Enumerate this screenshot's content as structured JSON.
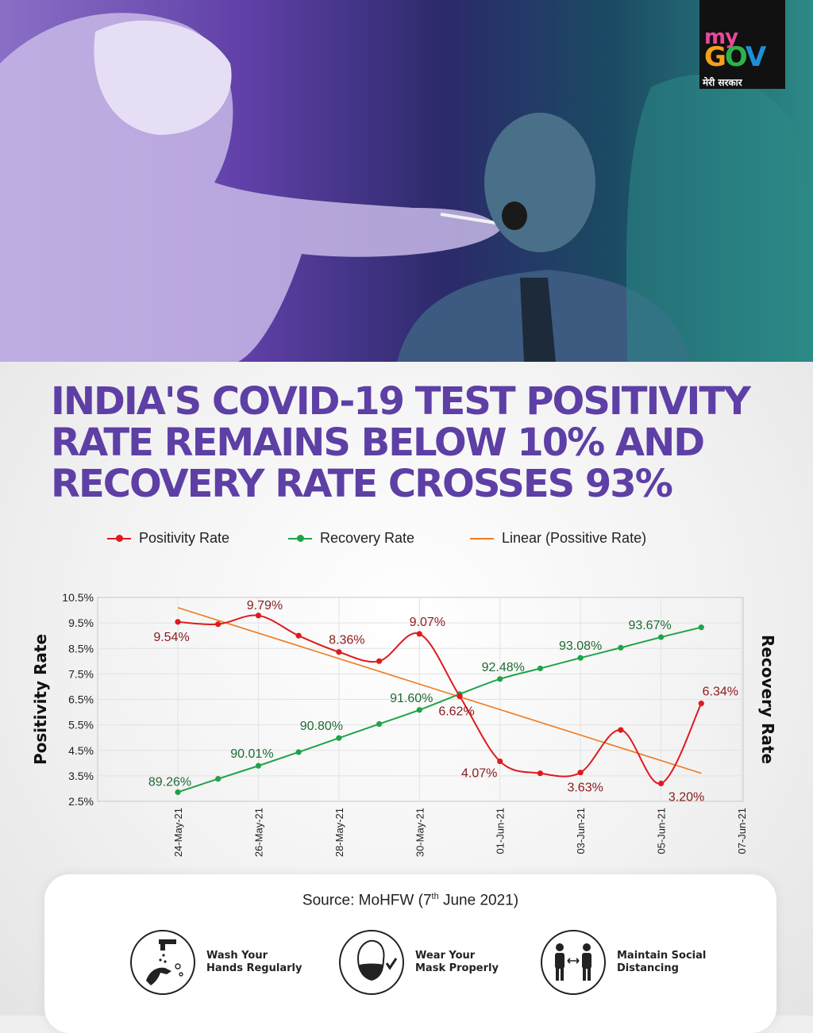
{
  "logo": {
    "my": "my",
    "gov_g": "G",
    "gov_o": "O",
    "gov_v": "V",
    "hindi": "मेरी सरकार"
  },
  "headline": {
    "line1": "INDIA'S COVID-19 TEST POSITIVITY",
    "line2": "RATE REMAINS BELOW 10% AND",
    "line3": "RECOVERY RATE CROSSES 93%"
  },
  "colors": {
    "positivity": "#e0191f",
    "recovery": "#1fa34a",
    "trend": "#f07a1e",
    "headline": "#5d3fa5"
  },
  "chart_data": {
    "type": "line",
    "legend": [
      "Positivity Rate",
      "Recovery Rate",
      "Linear (Possitive Rate)"
    ],
    "ylabel_left": "Positivity Rate",
    "ylabel_right": "Recovery Rate",
    "yticks": [
      "10.5%",
      "9.5%",
      "8.5%",
      "7.5%",
      "6.5%",
      "5.5%",
      "4.5%",
      "3.5%",
      "2.5%"
    ],
    "ylim": [
      2.5,
      10.5
    ],
    "xticks": [
      "24-May-21",
      "26-May-21",
      "28-May-21",
      "30-May-21",
      "01-Jun-21",
      "03-Jun-21",
      "05-Jun-21",
      "07-Jun-21"
    ],
    "x_range_days": [
      0,
      14
    ],
    "positivity": {
      "name": "Positivity Rate",
      "x": [
        0,
        1,
        2,
        3,
        4,
        5,
        6,
        7,
        8,
        9,
        10,
        11,
        12,
        13
      ],
      "values": [
        9.54,
        9.45,
        9.79,
        9.0,
        8.36,
        8.0,
        9.07,
        6.62,
        4.07,
        3.6,
        3.63,
        5.3,
        3.2,
        6.34
      ],
      "labels": [
        {
          "i": 0,
          "text": "9.54%"
        },
        {
          "i": 2,
          "text": "9.79%"
        },
        {
          "i": 4,
          "text": "8.36%"
        },
        {
          "i": 6,
          "text": "9.07%"
        },
        {
          "i": 7,
          "text": "6.62%"
        },
        {
          "i": 8,
          "text": "4.07%"
        },
        {
          "i": 10,
          "text": "3.63%"
        },
        {
          "i": 12,
          "text": "3.20%"
        },
        {
          "i": 13,
          "text": "6.34%"
        }
      ]
    },
    "recovery": {
      "name": "Recovery Rate",
      "x": [
        0,
        1,
        2,
        3,
        4,
        5,
        6,
        7,
        8,
        9,
        10,
        11,
        12,
        13
      ],
      "values": [
        89.26,
        89.64,
        90.01,
        90.4,
        90.8,
        91.2,
        91.6,
        92.05,
        92.48,
        92.78,
        93.08,
        93.37,
        93.67,
        93.95
      ],
      "axis_range": [
        89.0,
        94.8
      ],
      "labels": [
        {
          "i": 0,
          "text": "89.26%"
        },
        {
          "i": 2,
          "text": "90.01%"
        },
        {
          "i": 4,
          "text": "90.80%"
        },
        {
          "i": 6,
          "text": "91.60%"
        },
        {
          "i": 8,
          "text": "92.48%"
        },
        {
          "i": 10,
          "text": "93.08%"
        },
        {
          "i": 12,
          "text": "93.67%"
        }
      ]
    },
    "trend": {
      "name": "Linear (Possitive Rate)",
      "x": [
        0,
        13
      ],
      "values": [
        10.1,
        3.6
      ]
    }
  },
  "footer": {
    "source_pre": "Source: MoHFW (7",
    "source_sup": "th",
    "source_post": "June 2021)",
    "tips": [
      {
        "line1": "Wash Your",
        "line2": "Hands Regularly"
      },
      {
        "line1": "Wear Your",
        "line2": "Mask Properly"
      },
      {
        "line1": "Maintain Social",
        "line2": "Distancing"
      }
    ]
  }
}
